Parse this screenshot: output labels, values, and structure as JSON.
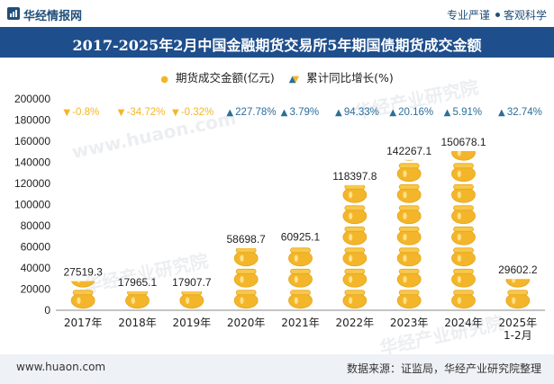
{
  "header": {
    "brand": "华经情报网",
    "tag1": "专业严谨",
    "tag2": "客观科学"
  },
  "title": "2017-2025年2月中国金融期货交易所5年期国债期货成交金额",
  "legend": {
    "series1": "期货成交金额(亿元)",
    "series2": "累计同比增长(%)"
  },
  "watermark": {
    "cn": "华经产业研究院",
    "en": "www.huaon.com"
  },
  "footer": {
    "website": "www.huaon.com",
    "source": "数据来源：证监局，华经产业研究院整理"
  },
  "colors": {
    "gold": "#f3b62a",
    "up": "#2a6e9a",
    "down": "#f3b62a",
    "title_bg": "#1f4e8c"
  },
  "chart_data": {
    "type": "bar",
    "title": "2017-2025年2月中国金融期货交易所5年期国债期货成交金额",
    "categories": [
      "2017年",
      "2018年",
      "2019年",
      "2020年",
      "2021年",
      "2022年",
      "2023年",
      "2024年",
      "2025年\n1-2月"
    ],
    "series": [
      {
        "name": "期货成交金额(亿元)",
        "values": [
          27519.3,
          17965.1,
          17907.7,
          58698.7,
          60925.1,
          118397.8,
          142267.1,
          150678.1,
          29602.2
        ],
        "labels": [
          "27519.3",
          "17965.1",
          "17907.7",
          "58698.7",
          "60925.1",
          "118397.8",
          "142267.1",
          "150678.1",
          "29602.2"
        ]
      },
      {
        "name": "累计同比增长(%)",
        "values": [
          -0.8,
          -34.72,
          -0.32,
          227.78,
          3.79,
          94.33,
          20.16,
          5.91,
          32.74
        ],
        "labels": [
          "-0.8%",
          "-34.72%",
          "-0.32%",
          "227.78%",
          "3.79%",
          "94.33%",
          "20.16%",
          "5.91%",
          "32.74%"
        ]
      }
    ],
    "yticks": [
      "0",
      "20000",
      "40000",
      "60000",
      "80000",
      "100000",
      "120000",
      "140000",
      "160000",
      "180000",
      "200000"
    ],
    "ylim": [
      0,
      200000
    ],
    "xlabel": "",
    "ylabel": ""
  }
}
